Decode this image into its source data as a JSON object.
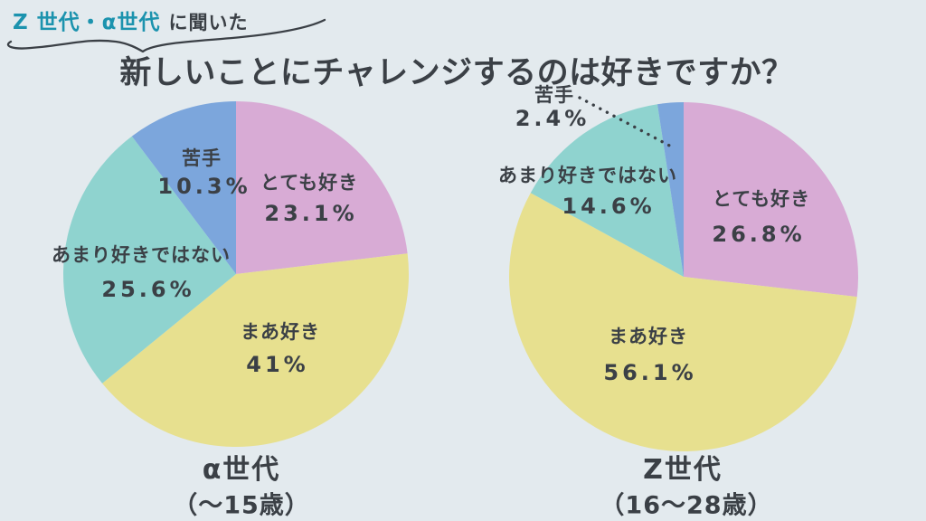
{
  "page": {
    "background_color": "#E3EAEE",
    "ink_color": "#3B4046"
  },
  "header": {
    "highlight": "Z 世代・α世代",
    "suffix": "に聞いた",
    "highlight_color": "#1C93AE"
  },
  "title": "新しいことにチャレンジするのは好きですか？",
  "chart_data": [
    {
      "type": "pie",
      "title": "α世代",
      "subtitle": "（～15歳）",
      "start_angle": "12-oclock",
      "direction": "clockwise",
      "slices": [
        {
          "label": "とても好き",
          "value": 23.1,
          "display": "23.1%",
          "color": "#D8ABD5"
        },
        {
          "label": "まあ好き",
          "value": 41,
          "display": "41%",
          "color": "#E7E08F"
        },
        {
          "label": "あまり好きではない",
          "value": 25.6,
          "display": "25.6%",
          "color": "#8FD3CF"
        },
        {
          "label": "苦手",
          "value": 10.3,
          "display": "10.3%",
          "color": "#7CA6DC"
        }
      ]
    },
    {
      "type": "pie",
      "title": "Z世代",
      "subtitle": "（16～28歳）",
      "start_angle": "12-oclock",
      "direction": "clockwise",
      "slices": [
        {
          "label": "とても好き",
          "value": 26.8,
          "display": "26.8%",
          "color": "#D8ABD5"
        },
        {
          "label": "まあ好き",
          "value": 56.1,
          "display": "56.1%",
          "color": "#E7E08F"
        },
        {
          "label": "あまり好きではない",
          "value": 14.6,
          "display": "14.6%",
          "color": "#8FD3CF"
        },
        {
          "label": "苦手",
          "value": 2.4,
          "display": "2.4%",
          "color": "#7CA6DC",
          "label_outside": true
        }
      ]
    }
  ]
}
